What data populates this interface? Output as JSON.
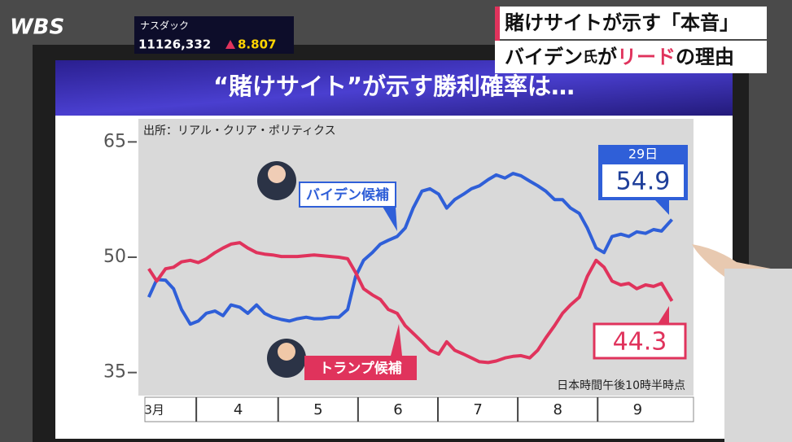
{
  "overlay": {
    "logo": "WBS",
    "ticker_name": "ナスダック",
    "ticker_value": "11126,332",
    "ticker_change": "8.807",
    "headline_1": "賭けサイトが示す「本音」",
    "headline_2a": "バイデン",
    "headline_2b": "氏",
    "headline_2c": "が",
    "headline_2d": "リード",
    "headline_2e": "の理由"
  },
  "chart_data": {
    "type": "line",
    "title": "“賭けサイト”が示す勝利確率は…",
    "source": "出所：リアル・クリア・ポリティクス",
    "note": "日本時間午後10時半時点",
    "date_label": "29日",
    "xlim": [
      3.25,
      10.2
    ],
    "ylim": [
      32,
      68
    ],
    "yticks": [
      35,
      50,
      65
    ],
    "grid": false,
    "xticks": [
      {
        "value": 3.45,
        "label": "3月"
      },
      {
        "value": 4.5,
        "label": "4"
      },
      {
        "value": 5.5,
        "label": "5"
      },
      {
        "value": 6.5,
        "label": "6"
      },
      {
        "value": 7.5,
        "label": "7"
      },
      {
        "value": 8.5,
        "label": "8"
      },
      {
        "value": 9.5,
        "label": "9"
      }
    ],
    "x": [
      3.38,
      3.48,
      3.59,
      3.69,
      3.79,
      3.9,
      4.0,
      4.1,
      4.21,
      4.31,
      4.41,
      4.52,
      4.62,
      4.73,
      4.83,
      4.93,
      5.04,
      5.14,
      5.24,
      5.35,
      5.45,
      5.55,
      5.66,
      5.76,
      5.87,
      5.97,
      6.07,
      6.18,
      6.28,
      6.38,
      6.49,
      6.59,
      6.69,
      6.8,
      6.9,
      7.01,
      7.11,
      7.21,
      7.32,
      7.42,
      7.52,
      7.63,
      7.73,
      7.84,
      7.94,
      8.04,
      8.15,
      8.25,
      8.35,
      8.46,
      8.56,
      8.66,
      8.77,
      8.87,
      8.98,
      9.08,
      9.18,
      9.29,
      9.39,
      9.49,
      9.6,
      9.7,
      9.8,
      9.93
    ],
    "series": [
      {
        "name": "バイデン候補",
        "color": "#2f5fd8",
        "values": [
          44.8,
          47.1,
          47.0,
          45.9,
          43.2,
          41.3,
          41.7,
          42.7,
          43.0,
          42.4,
          43.8,
          43.5,
          42.7,
          43.8,
          42.7,
          42.2,
          41.9,
          41.7,
          42.0,
          42.2,
          42.0,
          42.0,
          42.2,
          42.2,
          43.2,
          47.5,
          49.6,
          50.6,
          51.7,
          52.2,
          52.7,
          53.8,
          56.4,
          58.6,
          58.9,
          58.2,
          56.4,
          57.5,
          58.2,
          58.9,
          59.3,
          60.1,
          60.7,
          60.3,
          60.9,
          60.6,
          59.9,
          59.3,
          58.6,
          57.5,
          57.5,
          56.4,
          55.7,
          53.8,
          51.2,
          50.6,
          52.7,
          53.0,
          52.7,
          53.3,
          53.1,
          53.6,
          53.4,
          54.9
        ]
      },
      {
        "name": "トランプ候補",
        "color": "#e0335c",
        "values": [
          48.5,
          46.9,
          48.5,
          48.7,
          49.4,
          49.6,
          49.3,
          49.8,
          50.6,
          51.2,
          51.7,
          51.9,
          51.2,
          50.6,
          50.4,
          50.3,
          50.1,
          50.1,
          50.1,
          50.2,
          50.3,
          50.2,
          50.1,
          50.0,
          49.8,
          48.0,
          45.9,
          45.1,
          44.5,
          43.2,
          42.7,
          41.1,
          40.1,
          39.0,
          37.9,
          37.4,
          39.0,
          37.9,
          37.4,
          36.9,
          36.4,
          36.3,
          36.5,
          36.9,
          37.1,
          37.2,
          36.9,
          37.9,
          39.5,
          41.1,
          42.7,
          43.8,
          44.8,
          47.5,
          49.6,
          48.7,
          46.9,
          46.4,
          46.6,
          45.9,
          46.4,
          46.2,
          46.6,
          44.3
        ]
      }
    ]
  }
}
